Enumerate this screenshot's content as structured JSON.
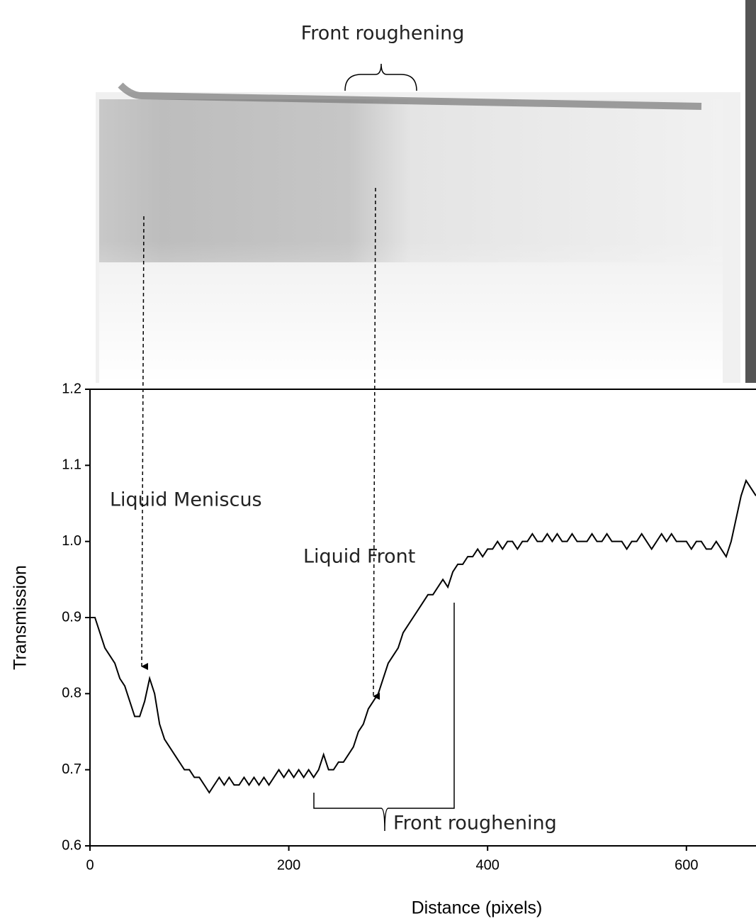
{
  "chart_data": {
    "type": "line",
    "x_label": "Distance (pixels)",
    "y_label": "Transmission",
    "annotations": [
      "Front roughening",
      "Liquid Meniscus",
      "Liquid Front",
      "Front roughening"
    ],
    "color": "#000000",
    "x": [
      0,
      5,
      10,
      15,
      20,
      25,
      30,
      35,
      40,
      45,
      50,
      55,
      60,
      65,
      70,
      75,
      80,
      85,
      90,
      95,
      100,
      105,
      110,
      115,
      120,
      125,
      130,
      135,
      140,
      145,
      150,
      155,
      160,
      165,
      170,
      175,
      180,
      185,
      190,
      195,
      200,
      205,
      210,
      215,
      220,
      225,
      230,
      235,
      240,
      245,
      250,
      255,
      260,
      265,
      270,
      275,
      280,
      285,
      290,
      295,
      300,
      305,
      310,
      315,
      320,
      325,
      330,
      335,
      340,
      345,
      350,
      355,
      360,
      365,
      370,
      375,
      380,
      385,
      390,
      395,
      400,
      405,
      410,
      415,
      420,
      425,
      430,
      435,
      440,
      445,
      450,
      455,
      460,
      465,
      470,
      475,
      480,
      485,
      490,
      495,
      500,
      505,
      510,
      515,
      520,
      525,
      530,
      535,
      540,
      545,
      550,
      555,
      560,
      565,
      570,
      575,
      580,
      585,
      590,
      595,
      600,
      605,
      610,
      615,
      620,
      625,
      630,
      635,
      640,
      645,
      650,
      655,
      660,
      665,
      670
    ],
    "values": [
      0.9,
      0.9,
      0.88,
      0.86,
      0.85,
      0.84,
      0.82,
      0.81,
      0.79,
      0.77,
      0.77,
      0.79,
      0.82,
      0.8,
      0.76,
      0.74,
      0.73,
      0.72,
      0.71,
      0.7,
      0.7,
      0.69,
      0.69,
      0.68,
      0.67,
      0.68,
      0.69,
      0.68,
      0.69,
      0.68,
      0.68,
      0.69,
      0.68,
      0.69,
      0.68,
      0.69,
      0.68,
      0.69,
      0.7,
      0.69,
      0.7,
      0.69,
      0.7,
      0.69,
      0.7,
      0.69,
      0.7,
      0.72,
      0.7,
      0.7,
      0.71,
      0.71,
      0.72,
      0.73,
      0.75,
      0.76,
      0.78,
      0.79,
      0.8,
      0.82,
      0.84,
      0.85,
      0.86,
      0.88,
      0.89,
      0.9,
      0.91,
      0.92,
      0.93,
      0.93,
      0.94,
      0.95,
      0.94,
      0.96,
      0.97,
      0.97,
      0.98,
      0.98,
      0.99,
      0.98,
      0.99,
      0.99,
      1.0,
      0.99,
      1.0,
      1.0,
      0.99,
      1.0,
      1.0,
      1.01,
      1.0,
      1.0,
      1.01,
      1.0,
      1.01,
      1.0,
      1.0,
      1.01,
      1.0,
      1.0,
      1.0,
      1.01,
      1.0,
      1.0,
      1.01,
      1.0,
      1.0,
      1.0,
      0.99,
      1.0,
      1.0,
      1.01,
      1.0,
      0.99,
      1.0,
      1.01,
      1.0,
      1.01,
      1.0,
      1.0,
      1.0,
      0.99,
      1.0,
      1.0,
      0.99,
      0.99,
      1.0,
      0.99,
      0.98,
      1.0,
      1.03,
      1.06,
      1.08,
      1.07,
      1.06
    ],
    "xlim": [
      0,
      670
    ],
    "ylim": [
      0.6,
      1.2
    ],
    "xticks": [
      0,
      200,
      400,
      600
    ],
    "yticks": [
      0.6,
      0.7,
      0.8,
      0.9,
      {
        "value": 1,
        "label": "1.0"
      },
      1.1,
      1.2
    ]
  }
}
